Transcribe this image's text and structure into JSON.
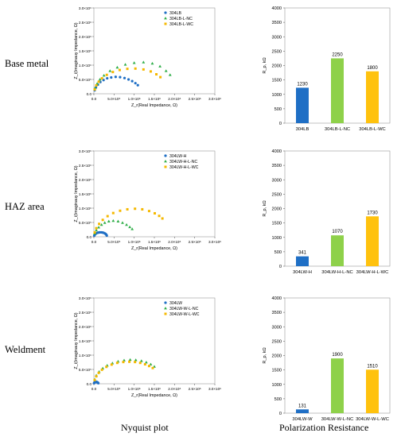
{
  "row_labels": [
    "Base metal",
    "HAZ area",
    "Weldment"
  ],
  "column_labels": {
    "nyquist": "Nyquist plot",
    "polarization": "Polarization Resistance"
  },
  "colors": {
    "series1": "#1f6fc5",
    "series2": "#2fae48",
    "series3": "#f5b800",
    "bar1": "#1f6fc5",
    "bar2": "#8ed14a",
    "bar3": "#ffc20e"
  },
  "chart_data": [
    {
      "type": "scatter",
      "panel": "nyquist-base",
      "xlabel": "Z_r(Real Impedance, Ω)",
      "ylabel": "Z_i(Imaginauy Impedance, Ω)",
      "xlim": [
        0,
        3000000
      ],
      "ylim": [
        0,
        3000000
      ],
      "xticks": [
        "0.0",
        "5.0×10⁵",
        "1.0×10⁶",
        "1.5×10⁶",
        "2.0×10⁶",
        "2.5×10⁶",
        "3.0×10⁶"
      ],
      "yticks": [
        "0.0",
        "5.0×10⁵",
        "1.0×10⁶",
        "1.5×10⁶",
        "2.0×10⁶",
        "2.5×10⁶",
        "3.0×10⁶"
      ],
      "legend_position": "top-right",
      "series": [
        {
          "name": "304LB",
          "marker": "circle",
          "color": "#1f6fc5",
          "x": [
            20000,
            50000,
            100000,
            160000,
            240000,
            330000,
            430000,
            540000,
            650000,
            760000,
            860000,
            950000,
            1030000,
            1090000
          ],
          "y": [
            120000,
            220000,
            320000,
            410000,
            480000,
            540000,
            570000,
            590000,
            580000,
            550000,
            500000,
            440000,
            370000,
            300000
          ]
        },
        {
          "name": "304LB-L-NC",
          "marker": "triangle",
          "color": "#2fae48",
          "x": [
            30000,
            80000,
            150000,
            250000,
            400000,
            580000,
            780000,
            1000000,
            1230000,
            1450000,
            1640000,
            1790000,
            1890000
          ],
          "y": [
            200000,
            350000,
            500000,
            640000,
            800000,
            920000,
            1020000,
            1080000,
            1100000,
            1060000,
            960000,
            800000,
            660000
          ]
        },
        {
          "name": "304LB-L-WC",
          "marker": "square",
          "color": "#f5b800",
          "x": [
            20000,
            60000,
            120000,
            200000,
            320000,
            470000,
            640000,
            830000,
            1030000,
            1230000,
            1410000,
            1550000,
            1650000
          ],
          "y": [
            150000,
            290000,
            420000,
            540000,
            660000,
            760000,
            830000,
            870000,
            880000,
            850000,
            780000,
            680000,
            580000
          ]
        }
      ]
    },
    {
      "type": "bar",
      "panel": "rp-base",
      "ylabel": "R_p, kΩ",
      "ylim": [
        0,
        4000
      ],
      "yticks": [
        "0",
        "500",
        "1000",
        "1500",
        "2000",
        "2500",
        "3000",
        "3500",
        "4000"
      ],
      "categories": [
        "304LB",
        "304LB-L-NC",
        "304LB-L-WC"
      ],
      "values": [
        1230,
        2250,
        1800
      ],
      "value_labels": [
        "1230",
        "2250",
        "1800"
      ]
    },
    {
      "type": "scatter",
      "panel": "nyquist-haz",
      "xlabel": "Z_r(Real Impedance, Ω)",
      "ylabel": "Z_i(Imaginauy Impedance, Ω)",
      "xlim": [
        0,
        3000000
      ],
      "ylim": [
        0,
        3000000
      ],
      "xticks": [
        "0.0",
        "5.0×10⁵",
        "1.0×10⁶",
        "1.5×10⁶",
        "2.0×10⁶",
        "2.5×10⁶",
        "3.0×10⁶"
      ],
      "yticks": [
        "0.0",
        "5.0×10⁵",
        "1.0×10⁶",
        "1.5×10⁶",
        "2.0×10⁶",
        "2.5×10⁶",
        "3.0×10⁶"
      ],
      "legend_position": "top-right",
      "series": [
        {
          "name": "304LW-H",
          "marker": "circle",
          "color": "#1f6fc5",
          "x": [
            10000,
            20000,
            40000,
            60000,
            90000,
            120000,
            150000,
            180000,
            210000,
            240000,
            270000,
            290000,
            310000,
            320000
          ],
          "y": [
            40000,
            70000,
            100000,
            120000,
            140000,
            150000,
            155000,
            155000,
            150000,
            140000,
            120000,
            100000,
            70000,
            40000
          ]
        },
        {
          "name": "304LW-H-L-NC",
          "marker": "triangle",
          "color": "#2fae48",
          "x": [
            20000,
            60000,
            120000,
            190000,
            270000,
            370000,
            480000,
            600000,
            710000,
            810000,
            890000,
            950000
          ],
          "y": [
            120000,
            230000,
            330000,
            420000,
            490000,
            540000,
            560000,
            540000,
            490000,
            420000,
            340000,
            270000
          ]
        },
        {
          "name": "304LW-H-L-WC",
          "marker": "square",
          "color": "#f5b800",
          "x": [
            20000,
            60000,
            130000,
            220000,
            340000,
            480000,
            650000,
            830000,
            1020000,
            1200000,
            1370000,
            1510000,
            1620000,
            1700000
          ],
          "y": [
            150000,
            300000,
            450000,
            590000,
            720000,
            830000,
            910000,
            960000,
            980000,
            960000,
            900000,
            820000,
            730000,
            640000
          ]
        }
      ]
    },
    {
      "type": "bar",
      "panel": "rp-haz",
      "ylabel": "R_p, kΩ",
      "ylim": [
        0,
        4000
      ],
      "yticks": [
        "0",
        "500",
        "1000",
        "1500",
        "2000",
        "2500",
        "3000",
        "3500",
        "4000"
      ],
      "categories": [
        "304LW-H",
        "304LW-H-L-NC",
        "304LW-H-L-WC"
      ],
      "values": [
        341,
        1070,
        1730
      ],
      "value_labels": [
        "341",
        "1070",
        "1730"
      ]
    },
    {
      "type": "scatter",
      "panel": "nyquist-weld",
      "xlabel": "Z_r(Real Impedance, Ω)",
      "ylabel": "Z_i(Imaginauy Impedance, Ω)",
      "xlim": [
        0,
        3000000
      ],
      "ylim": [
        0,
        3000000
      ],
      "xticks": [
        "0.0",
        "5.0×10⁵",
        "1.0×10⁶",
        "1.5×10⁶",
        "2.0×10⁶",
        "2.5×10⁶",
        "3.0×10⁶"
      ],
      "yticks": [
        "0.0",
        "5.0×10⁵",
        "1.0×10⁶",
        "1.5×10⁶",
        "2.0×10⁶",
        "2.5×10⁶",
        "3.0×10⁶"
      ],
      "legend_position": "top-right",
      "series": [
        {
          "name": "304LW",
          "marker": "circle",
          "color": "#1f6fc5",
          "x": [
            5000,
            10000,
            20000,
            30000,
            45000,
            60000,
            75000,
            90000,
            100000,
            110000
          ],
          "y": [
            20000,
            35000,
            50000,
            60000,
            65000,
            65000,
            60000,
            50000,
            35000,
            20000
          ]
        },
        {
          "name": "304LW-W-L-NC",
          "marker": "triangle",
          "color": "#2fae48",
          "x": [
            20000,
            60000,
            130000,
            220000,
            330000,
            460000,
            600000,
            750000,
            900000,
            1040000,
            1180000,
            1300000,
            1410000,
            1500000
          ],
          "y": [
            150000,
            290000,
            420000,
            540000,
            640000,
            720000,
            780000,
            820000,
            840000,
            830000,
            800000,
            750000,
            680000,
            600000
          ]
        },
        {
          "name": "304LW-W-L-WC",
          "marker": "square",
          "color": "#f5b800",
          "x": [
            20000,
            60000,
            120000,
            200000,
            310000,
            440000,
            580000,
            730000,
            880000,
            1020000,
            1150000,
            1270000,
            1370000,
            1460000
          ],
          "y": [
            130000,
            260000,
            380000,
            490000,
            590000,
            670000,
            730000,
            760000,
            770000,
            760000,
            730000,
            680000,
            620000,
            550000
          ]
        }
      ]
    },
    {
      "type": "bar",
      "panel": "rp-weld",
      "ylabel": "R_p, kΩ",
      "ylim": [
        0,
        4000
      ],
      "yticks": [
        "0",
        "500",
        "1000",
        "1500",
        "2000",
        "2500",
        "3000",
        "3500",
        "4000"
      ],
      "categories": [
        "304LW-W",
        "304LW-W-L-NC",
        "304LW-W-L-WC"
      ],
      "values": [
        131,
        1900,
        1510
      ],
      "value_labels": [
        "131",
        "1900",
        "1510"
      ]
    }
  ]
}
